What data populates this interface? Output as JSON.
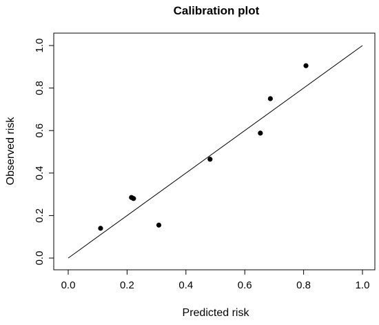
{
  "chart_data": {
    "type": "scatter",
    "title": "Calibration plot",
    "xlabel": "Predicted risk",
    "ylabel": "Observed risk",
    "xlim": [
      0.0,
      1.0
    ],
    "ylim": [
      0.0,
      1.0
    ],
    "x_ticks": [
      "0.0",
      "0.2",
      "0.4",
      "0.6",
      "0.8",
      "1.0"
    ],
    "y_ticks": [
      "0.0",
      "0.2",
      "0.4",
      "0.6",
      "0.8",
      "1.0"
    ],
    "grid": false,
    "reference_line": {
      "from": [
        0.0,
        0.0
      ],
      "to": [
        1.0,
        1.0
      ]
    },
    "series": [
      {
        "points": [
          {
            "x": 0.11,
            "y": 0.14
          },
          {
            "x": 0.215,
            "y": 0.285
          },
          {
            "x": 0.222,
            "y": 0.28
          },
          {
            "x": 0.308,
            "y": 0.155
          },
          {
            "x": 0.482,
            "y": 0.465
          },
          {
            "x": 0.653,
            "y": 0.588
          },
          {
            "x": 0.687,
            "y": 0.75
          },
          {
            "x": 0.808,
            "y": 0.905
          }
        ]
      }
    ],
    "colors": {
      "points": "#000000",
      "line": "#000000",
      "axes": "#000000"
    }
  }
}
